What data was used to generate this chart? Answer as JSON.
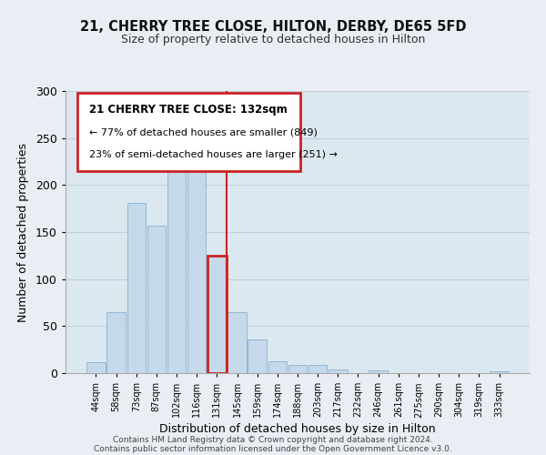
{
  "title": "21, CHERRY TREE CLOSE, HILTON, DERBY, DE65 5FD",
  "subtitle": "Size of property relative to detached houses in Hilton",
  "xlabel": "Distribution of detached houses by size in Hilton",
  "ylabel": "Number of detached properties",
  "bar_labels": [
    "44sqm",
    "58sqm",
    "73sqm",
    "87sqm",
    "102sqm",
    "116sqm",
    "131sqm",
    "145sqm",
    "159sqm",
    "174sqm",
    "188sqm",
    "203sqm",
    "217sqm",
    "232sqm",
    "246sqm",
    "261sqm",
    "275sqm",
    "290sqm",
    "304sqm",
    "319sqm",
    "333sqm"
  ],
  "bar_values": [
    12,
    65,
    181,
    157,
    215,
    220,
    125,
    65,
    36,
    13,
    9,
    9,
    4,
    0,
    3,
    0,
    0,
    0,
    0,
    0,
    2
  ],
  "highlight_bar_index": 6,
  "bar_color_normal": "#c5d9ea",
  "bar_edge_color": "#8fb8d8",
  "highlight_edge_color": "#cc2222",
  "ylim": [
    0,
    300
  ],
  "yticks": [
    0,
    50,
    100,
    150,
    200,
    250,
    300
  ],
  "annotation_title": "21 CHERRY TREE CLOSE: 132sqm",
  "annotation_line1": "← 77% of detached houses are smaller (849)",
  "annotation_line2": "23% of semi-detached houses are larger (251) →",
  "annotation_box_color": "#ffffff",
  "annotation_box_edge": "#cc2222",
  "footer_line1": "Contains HM Land Registry data © Crown copyright and database right 2024.",
  "footer_line2": "Contains public sector information licensed under the Open Government Licence v3.0.",
  "background_color": "#e8eef4",
  "plot_background_color": "#dce8f0",
  "grid_color": "#c0d0de"
}
